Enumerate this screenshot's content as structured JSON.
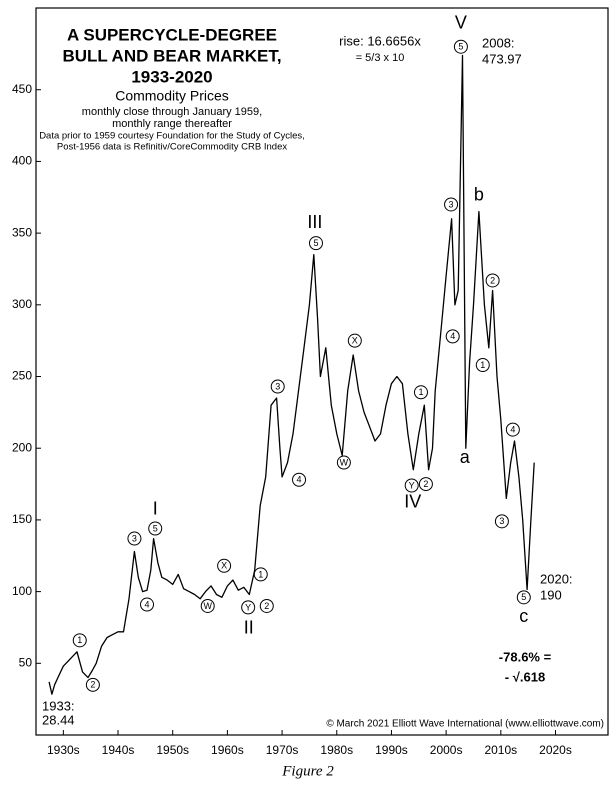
{
  "chart_data": {
    "type": "line",
    "title": [
      "A SUPERCYCLE-DEGREE",
      "BULL AND BEAR MARKET,",
      "1933-2020"
    ],
    "subtitle": "Commodity Prices",
    "notes": [
      "monthly close through January 1959,",
      "monthly range thereafter",
      "Data prior to 1959 courtesy Foundation for the Study of Cycles,",
      "Post-1956 data is Refinitiv/CoreCommodity CRB Index"
    ],
    "side_notes": [
      "rise: 16.6656x",
      "= 5/3 x 10",
      "2008:",
      "1933:",
      "2020:",
      "-78.6% =",
      "- √.618"
    ],
    "copyright": "© March 2021 Elliott Wave International (www.elliottwave.com)",
    "caption": "Figure 2",
    "color": "#000000",
    "x": [
      1932.4,
      1932.9,
      1933.4,
      1934,
      1935,
      1936,
      1937.5,
      1938.5,
      1939.5,
      1940.3,
      1941,
      1942,
      1943,
      1944,
      1945,
      1946,
      1947,
      1948,
      1948.7,
      1949.5,
      1950.3,
      1951,
      1951.5,
      1952.3,
      1953,
      1954,
      1955,
      1956,
      1957,
      1958,
      1959,
      1960,
      1961,
      1962,
      1963,
      1964,
      1965,
      1966,
      1967,
      1968,
      1969,
      1970,
      1971,
      1972,
      1973,
      1974,
      1974.6,
      1975,
      1976,
      1977,
      1978,
      1979,
      1980,
      1980.8,
      1981.5,
      1982,
      1983,
      1984,
      1985,
      1986,
      1987,
      1988,
      1989,
      1990,
      1991,
      1992,
      1993,
      1994,
      1995,
      1996,
      1997,
      1998,
      1999,
      2000,
      2001,
      2001.8,
      2002.5,
      2003,
      2004,
      2005,
      2006,
      2006.6,
      2007.2,
      2008,
      2008.6,
      2009.3,
      2010,
      2011,
      2012,
      2012.8,
      2013.5,
      2014.3,
      2015,
      2016,
      2016.8,
      2017.5,
      2018.3,
      2019,
      2019.8,
      2020.5,
      2021.1
    ],
    "values": [
      37,
      28.44,
      35,
      40,
      48,
      52,
      58,
      44,
      40,
      45,
      50,
      62,
      68,
      70,
      72,
      72,
      95,
      128,
      110,
      100,
      101,
      115,
      137,
      120,
      110,
      108,
      105,
      112,
      102,
      100,
      98,
      95,
      100,
      104,
      98,
      96,
      104,
      108,
      101,
      103,
      98,
      115,
      160,
      180,
      230,
      235,
      200,
      180,
      190,
      210,
      240,
      270,
      300,
      335,
      290,
      250,
      270,
      230,
      210,
      195,
      240,
      265,
      240,
      225,
      215,
      205,
      210,
      230,
      245,
      250,
      245,
      210,
      185,
      210,
      230,
      185,
      200,
      240,
      280,
      320,
      360,
      300,
      310,
      473.97,
      200,
      260,
      300,
      365,
      300,
      270,
      310,
      250,
      220,
      165,
      190,
      205,
      180,
      150,
      101.48,
      150,
      190
    ],
    "annotations": [
      {
        "text": "1",
        "x": 1938.0,
        "y": 66,
        "circled": true
      },
      {
        "text": "2",
        "x": 1940.4,
        "y": 35,
        "circled": true
      },
      {
        "text": "3",
        "x": 1948.0,
        "y": 137,
        "circled": true
      },
      {
        "text": "4",
        "x": 1950.3,
        "y": 91,
        "circled": true
      },
      {
        "text": "5",
        "x": 1951.8,
        "y": 144,
        "circled": true
      },
      {
        "text": "I",
        "x": 1951.8,
        "y": 157,
        "circled": false
      },
      {
        "text": "W",
        "x": 1961.4,
        "y": 90,
        "circled": true
      },
      {
        "text": "X",
        "x": 1964.4,
        "y": 118,
        "circled": true
      },
      {
        "text": "Y",
        "x": 1968.8,
        "y": 89,
        "circled": true
      },
      {
        "text": "II",
        "x": 1968.9,
        "y": 74,
        "circled": false
      },
      {
        "text": "1",
        "x": 1971.1,
        "y": 112,
        "circled": true
      },
      {
        "text": "2",
        "x": 1972.2,
        "y": 90,
        "circled": true
      },
      {
        "text": "3",
        "x": 1974.2,
        "y": 243,
        "circled": true
      },
      {
        "text": "4",
        "x": 1978.1,
        "y": 178,
        "circled": true
      },
      {
        "text": "5",
        "x": 1981.2,
        "y": 343,
        "circled": true
      },
      {
        "text": "III",
        "x": 1981.0,
        "y": 357,
        "circled": false
      },
      {
        "text": "W",
        "x": 1986.3,
        "y": 190,
        "circled": true
      },
      {
        "text": "X",
        "x": 1988.3,
        "y": 275,
        "circled": true
      },
      {
        "text": "Y",
        "x": 1998.7,
        "y": 174,
        "circled": true
      },
      {
        "text": "IV",
        "x": 1998.9,
        "y": 162,
        "circled": false
      },
      {
        "text": "1",
        "x": 2000.4,
        "y": 239,
        "circled": true
      },
      {
        "text": "2",
        "x": 2001.3,
        "y": 175,
        "circled": true
      },
      {
        "text": "3",
        "x": 2005.9,
        "y": 370,
        "circled": true
      },
      {
        "text": "4",
        "x": 2006.2,
        "y": 278,
        "circled": true
      },
      {
        "text": "5",
        "x": 2007.7,
        "y": 480,
        "circled": true
      },
      {
        "text": "V",
        "x": 2007.7,
        "y": 496,
        "circled": false
      },
      {
        "text": "a",
        "x": 2008.4,
        "y": 193,
        "circled": false
      },
      {
        "text": "b",
        "x": 2011.0,
        "y": 376,
        "circled": false
      },
      {
        "text": "1",
        "x": 2011.7,
        "y": 258,
        "circled": true
      },
      {
        "text": "2",
        "x": 2013.5,
        "y": 317,
        "circled": true
      },
      {
        "text": "3",
        "x": 2015.2,
        "y": 149,
        "circled": true
      },
      {
        "text": "4",
        "x": 2017.2,
        "y": 213,
        "circled": true
      },
      {
        "text": "5",
        "x": 2019.2,
        "y": 96,
        "circled": true
      },
      {
        "text": "c",
        "x": 2019.2,
        "y": 82,
        "circled": false
      }
    ],
    "xlim": [
      1930,
      2034.6
    ],
    "ylim": [
      0,
      507
    ],
    "xticks": [
      {
        "value": 1935,
        "label": "1930s"
      },
      {
        "value": 1945,
        "label": "1940s"
      },
      {
        "value": 1955,
        "label": "1950s"
      },
      {
        "value": 1965,
        "label": "1960s"
      },
      {
        "value": 1975,
        "label": "1970s"
      },
      {
        "value": 1985,
        "label": "1980s"
      },
      {
        "value": 1995,
        "label": "1990s"
      },
      {
        "value": 2005,
        "label": "2000s"
      },
      {
        "value": 2015,
        "label": "2010s"
      },
      {
        "value": 2025,
        "label": "2020s"
      }
    ],
    "yticks": [
      50,
      100,
      150,
      200,
      250,
      300,
      350,
      400,
      450
    ]
  }
}
